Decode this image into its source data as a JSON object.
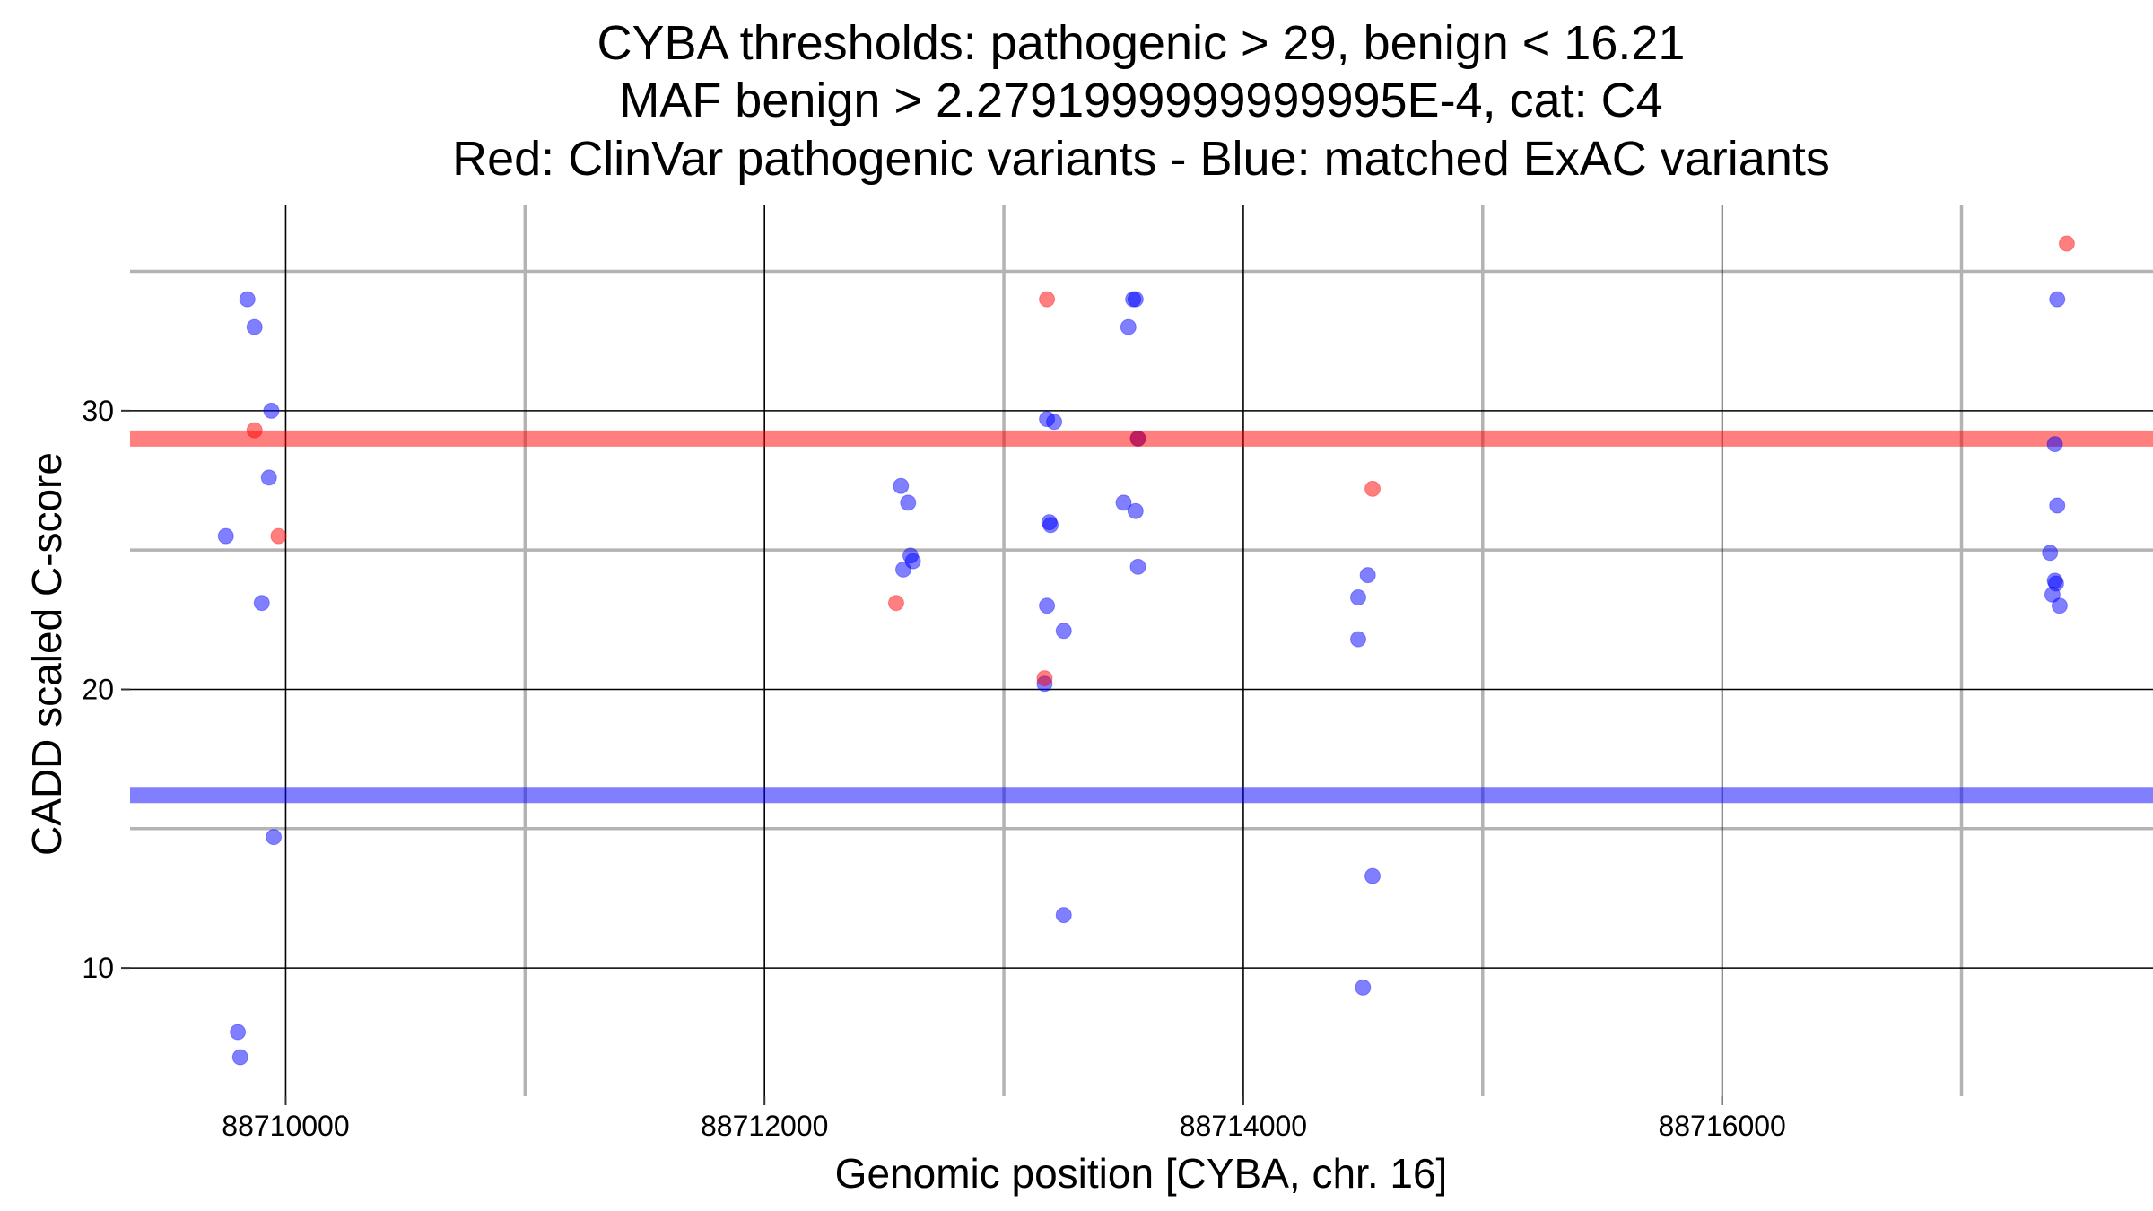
{
  "chart_data": {
    "type": "scatter",
    "title_lines": [
      "CYBA thresholds: pathogenic > 29, benign < 16.21",
      "MAF benign > 2.2791999999999995E-4, cat: C4",
      "Red: ClinVar pathogenic variants - Blue: matched ExAC variants"
    ],
    "xlabel": "Genomic position [CYBA, chr. 16]",
    "ylabel": "CADD scaled C-score",
    "xlim": [
      88709350,
      88717800
    ],
    "ylim": [
      5.4,
      37.4
    ],
    "x_ticks": [
      88710000,
      88712000,
      88714000,
      88716000
    ],
    "x_tick_labels": [
      "88710000",
      "88712000",
      "88714000",
      "88716000"
    ],
    "x_minor_ticks": [
      88711000,
      88713000,
      88715000,
      88717000
    ],
    "y_ticks": [
      10,
      20,
      30
    ],
    "y_tick_labels": [
      "10",
      "20",
      "30"
    ],
    "y_minor_ticks": [
      15,
      25,
      35
    ],
    "grid": true,
    "thresholds": [
      {
        "value": 29,
        "color": "#ff0000"
      },
      {
        "value": 16.21,
        "color": "#0000ff"
      }
    ],
    "series": [
      {
        "color": "#0000ff",
        "points": [
          [
            88709840,
            34.0
          ],
          [
            88709870,
            33.0
          ],
          [
            88709940,
            30.0
          ],
          [
            88709930,
            27.6
          ],
          [
            88709750,
            25.5
          ],
          [
            88709900,
            23.1
          ],
          [
            88709950,
            14.7
          ],
          [
            88709800,
            7.7
          ],
          [
            88709810,
            6.8
          ],
          [
            88712570,
            27.3
          ],
          [
            88712600,
            26.7
          ],
          [
            88712610,
            24.8
          ],
          [
            88712620,
            24.6
          ],
          [
            88712580,
            24.3
          ],
          [
            88713180,
            29.7
          ],
          [
            88713210,
            29.6
          ],
          [
            88713190,
            26.0
          ],
          [
            88713195,
            25.9
          ],
          [
            88713180,
            23.0
          ],
          [
            88713250,
            22.1
          ],
          [
            88713170,
            20.2
          ],
          [
            88713250,
            11.9
          ],
          [
            88713540,
            34.0
          ],
          [
            88713550,
            34.0
          ],
          [
            88713520,
            33.0
          ],
          [
            88713500,
            26.7
          ],
          [
            88713550,
            26.4
          ],
          [
            88713560,
            24.4
          ],
          [
            88713560,
            29.0
          ],
          [
            88714520,
            24.1
          ],
          [
            88714480,
            23.3
          ],
          [
            88714480,
            21.8
          ],
          [
            88714540,
            13.3
          ],
          [
            88714500,
            9.3
          ],
          [
            88717400,
            34.0
          ],
          [
            88717390,
            28.8
          ],
          [
            88717400,
            26.6
          ],
          [
            88717370,
            24.9
          ],
          [
            88717390,
            23.9
          ],
          [
            88717395,
            23.8
          ],
          [
            88717380,
            23.4
          ],
          [
            88717410,
            23.0
          ]
        ]
      },
      {
        "color": "#ff0000",
        "points": [
          [
            88709870,
            29.3
          ],
          [
            88709970,
            25.5
          ],
          [
            88712550,
            23.1
          ],
          [
            88713180,
            34.0
          ],
          [
            88713170,
            20.4
          ],
          [
            88713560,
            29.0
          ],
          [
            88714540,
            27.2
          ],
          [
            88717440,
            36.0
          ]
        ]
      }
    ]
  }
}
